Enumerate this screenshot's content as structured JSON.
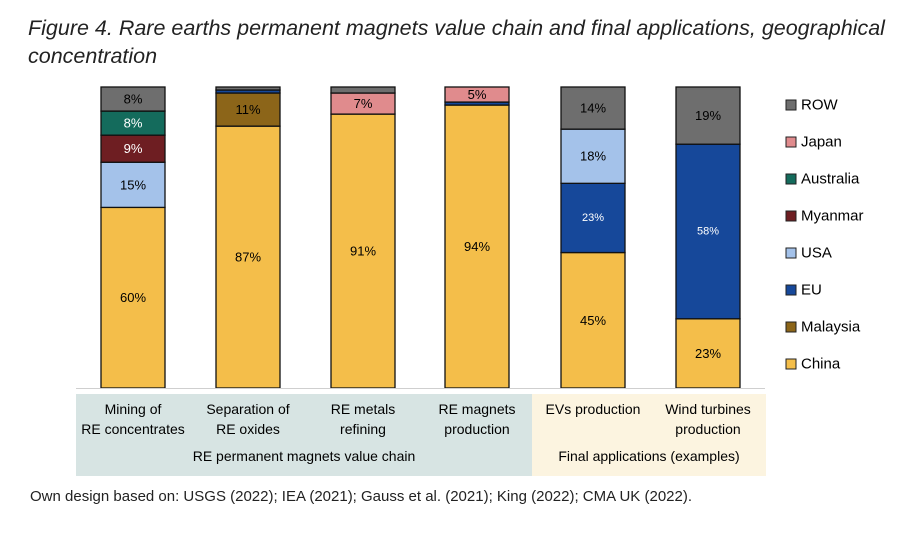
{
  "title_line1": "Figure 4. Rare earths permanent magnets value chain and final applications, geographical",
  "title_line2": "concentration",
  "source": "Own design based on: USGS (2022); IEA (2021); Gauss et al. (2021); King (2022); CMA UK (2022).",
  "colors": {
    "China": "#F4BE4A",
    "Malaysia": "#8C6519",
    "EU": "#16489A",
    "USA": "#A4C2EA",
    "Myanmar": "#6E1E22",
    "Australia": "#146B5C",
    "Japan": "#E08B8D",
    "ROW": "#6E6E6E",
    "group_value_chain_bg": "#D7E4E3",
    "group_final_bg": "#FCF4E0"
  },
  "chart_data": {
    "type": "bar",
    "stacked": true,
    "normalized_to": 100,
    "categories": [
      [
        "Mining of",
        "RE concentrates"
      ],
      [
        "Separation of",
        "RE oxides"
      ],
      [
        "RE metals",
        "refining"
      ],
      [
        "RE magnets",
        "production"
      ],
      [
        "EVs production"
      ],
      [
        "Wind turbines",
        "production"
      ]
    ],
    "groups": [
      {
        "label": "RE permanent magnets value chain",
        "categories": [
          0,
          1,
          2,
          3
        ]
      },
      {
        "label": "Final applications (examples)",
        "categories": [
          4,
          5
        ]
      }
    ],
    "stack_order": [
      "China",
      "Malaysia",
      "EU",
      "USA",
      "Myanmar",
      "Australia",
      "Japan",
      "ROW"
    ],
    "legend_order": [
      "ROW",
      "Japan",
      "Australia",
      "Myanmar",
      "USA",
      "EU",
      "Malaysia",
      "China"
    ],
    "legend_placement": "right",
    "series": [
      {
        "name": "China",
        "values": [
          60,
          87,
          91,
          94,
          45,
          23
        ]
      },
      {
        "name": "Malaysia",
        "values": [
          0,
          11,
          0,
          0,
          0,
          0
        ]
      },
      {
        "name": "EU",
        "values": [
          0,
          1,
          0,
          1,
          23,
          58
        ]
      },
      {
        "name": "USA",
        "values": [
          15,
          0,
          0,
          0,
          18,
          0
        ]
      },
      {
        "name": "Myanmar",
        "values": [
          9,
          0,
          0,
          0,
          0,
          0
        ]
      },
      {
        "name": "Australia",
        "values": [
          8,
          0,
          0,
          0,
          0,
          0
        ]
      },
      {
        "name": "Japan",
        "values": [
          0,
          0,
          7,
          5,
          0,
          0
        ]
      },
      {
        "name": "ROW",
        "values": [
          8,
          1,
          2,
          0,
          14,
          19
        ]
      }
    ],
    "data_labels": [
      {
        "China": "60%",
        "USA": "15%",
        "Myanmar": "9%",
        "Australia": "8%",
        "ROW": "8%"
      },
      {
        "China": "87%",
        "Malaysia": "11%"
      },
      {
        "China": "91%",
        "Japan": "7%"
      },
      {
        "China": "94%",
        "Japan": "5%"
      },
      {
        "China": "45%",
        "EU": "23%",
        "USA": "18%",
        "ROW": "14%"
      },
      {
        "China": "23%",
        "EU": "58%",
        "ROW": "19%"
      }
    ],
    "ylim": [
      0,
      100
    ],
    "grid": false
  }
}
